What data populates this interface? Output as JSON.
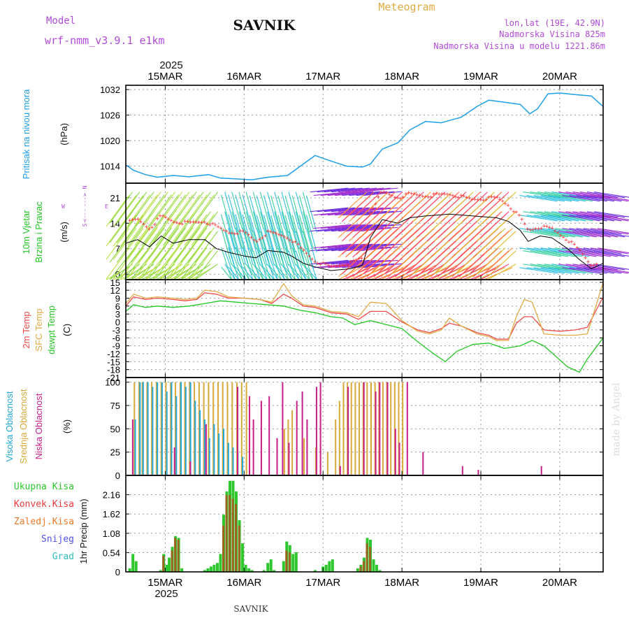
{
  "header": {
    "model_label": "Model",
    "model_name": "wrf-nmm_v3.9.1  e1km",
    "station": "SAVNIK",
    "product": "Meteogram",
    "lonlat": "lon,lat (19E, 42.9N)",
    "elevation": "Nadmorska Visina 825m",
    "model_elevation": "Nadmorska Visina u modelu 1221.86m"
  },
  "footer": {
    "station": "SAVNIK",
    "credit": "made by Angel"
  },
  "colors": {
    "pressure": "#1e9fe8",
    "temp2m": "#ef4a4a",
    "sfc": "#e0aa44",
    "dewpt": "#22c822",
    "high": "#22a8d8",
    "mid": "#d8a838",
    "low": "#c81e8a",
    "total_precip": "#2ec82e",
    "conv_precip": "#c83a1a",
    "frozen": "#f07a2a",
    "snow": "#5050e8",
    "graupel": "#30c0c0",
    "speed_line": "#000000",
    "gust_marks": "#ff3030",
    "compass": "#b04ad8"
  },
  "chart_data": [
    {
      "id": "pressure",
      "type": "line",
      "ylabel_main": "Pritisak na nivou mora",
      "ylabel_unit": "(hPa)",
      "x_unit": "days",
      "x_day_labels": [
        "15MAR",
        "16MAR",
        "17MAR",
        "18MAR",
        "19MAR",
        "20MAR"
      ],
      "x_year": "2025",
      "xlim_days": [
        14.5,
        20.55
      ],
      "ylim": [
        1010,
        1033
      ],
      "yticks": [
        1014,
        1020,
        1026,
        1032
      ],
      "grid": true,
      "series": [
        {
          "x": [
            14.5,
            14.6,
            14.75,
            14.9,
            15.1,
            15.3,
            15.55,
            15.7,
            15.9,
            16.1,
            16.3,
            16.55,
            16.75,
            16.9,
            17.1,
            17.3,
            17.5,
            17.6,
            17.75,
            17.95,
            18.1,
            18.3,
            18.5,
            18.75,
            18.95,
            19.1,
            19.3,
            19.5,
            19.62,
            19.72,
            19.85,
            20.0,
            20.2,
            20.4,
            20.55
          ],
          "y": [
            1014.3,
            1013.0,
            1012.0,
            1011.4,
            1011.8,
            1011.5,
            1012.0,
            1011.2,
            1011.0,
            1010.8,
            1011.4,
            1011.8,
            1014.5,
            1016.5,
            1015.2,
            1014.0,
            1013.8,
            1014.5,
            1018.0,
            1019.5,
            1022.5,
            1024.5,
            1024.2,
            1025.5,
            1028.0,
            1029.5,
            1029.0,
            1028.5,
            1026.3,
            1027.5,
            1031.0,
            1031.2,
            1030.8,
            1030.5,
            1028.0
          ]
        }
      ]
    },
    {
      "id": "wind",
      "type": "line",
      "ylabel_main": "10m Vjetar",
      "ylabel_sub": "Brzina i Pravac",
      "ylabel_unit": "(m/s)",
      "compass": {
        "north": "N",
        "south": "S",
        "east": "E",
        "west": "W",
        "north_arrow": "--->",
        "south_arrow": "<---"
      },
      "ylim": [
        -1.5,
        25
      ],
      "yticks": [
        0,
        7,
        14,
        21
      ],
      "grid": true,
      "series": [
        {
          "name": "speed",
          "x": [
            14.5,
            14.65,
            14.8,
            14.95,
            15.1,
            15.3,
            15.5,
            15.65,
            15.8,
            16.0,
            16.15,
            16.3,
            16.5,
            16.6,
            16.75,
            16.9,
            17.1,
            17.35,
            17.5,
            17.6,
            17.75,
            17.95,
            18.1,
            18.3,
            18.6,
            18.9,
            19.2,
            19.35,
            19.5,
            19.6,
            19.75,
            19.9,
            20.1,
            20.25,
            20.4,
            20.55
          ],
          "y": [
            8.5,
            9.5,
            7.5,
            10.5,
            8.5,
            9.5,
            9.5,
            7.0,
            6.0,
            5.0,
            4.5,
            6.5,
            6.0,
            5.0,
            3.0,
            2.0,
            1.0,
            1.5,
            2.5,
            10.0,
            15.0,
            14.0,
            15.5,
            16.0,
            16.5,
            16.0,
            15.5,
            14.5,
            12.0,
            9.0,
            10.5,
            10.0,
            7.0,
            4.0,
            1.5,
            3.0
          ]
        },
        {
          "name": "gust",
          "x": [
            14.5,
            14.65,
            14.8,
            14.95,
            15.1,
            15.3,
            15.5,
            15.65,
            15.8,
            16.0,
            16.15,
            16.3,
            16.5,
            16.6,
            16.75,
            16.9,
            17.1,
            17.35,
            17.5,
            17.6,
            17.75,
            17.95,
            18.1,
            18.3,
            18.6,
            18.9,
            19.2,
            19.35,
            19.5,
            19.6,
            19.75,
            19.9,
            20.1,
            20.25,
            20.4,
            20.55
          ],
          "y": [
            13.5,
            14.5,
            12.0,
            15.5,
            14.0,
            13.5,
            14.0,
            12.5,
            11.0,
            11.0,
            8.5,
            11.0,
            10.0,
            9.0,
            6.0,
            3.0,
            1.5,
            2.5,
            4.0,
            17.0,
            22.0,
            20.5,
            21.5,
            21.0,
            21.5,
            20.0,
            20.5,
            18.5,
            15.0,
            11.5,
            12.5,
            12.0,
            9.0,
            6.0,
            2.0,
            3.5
          ]
        }
      ]
    },
    {
      "id": "temperature",
      "type": "line",
      "ylabel_lines": [
        "2m Temp",
        "SFC Temp",
        "dewpt Temp"
      ],
      "ylabel_unit": "(C)",
      "ylim": [
        -21,
        16
      ],
      "yticks": [
        15,
        12,
        9,
        6,
        3,
        0,
        -3,
        -6,
        -9,
        -12,
        -15,
        -18,
        -21
      ],
      "grid": true,
      "series": [
        {
          "name": "2m Temp",
          "x": [
            14.5,
            14.6,
            14.75,
            14.9,
            15.1,
            15.25,
            15.4,
            15.5,
            15.65,
            15.8,
            16.0,
            16.2,
            16.35,
            16.5,
            16.6,
            16.75,
            16.9,
            17.1,
            17.3,
            17.45,
            17.6,
            17.8,
            18.0,
            18.2,
            18.35,
            18.5,
            18.6,
            18.75,
            18.95,
            19.1,
            19.2,
            19.35,
            19.45,
            19.55,
            19.65,
            19.8,
            20.0,
            20.2,
            20.35,
            20.55
          ],
          "y": [
            6.0,
            9.5,
            8.5,
            9.0,
            8.5,
            8.0,
            8.5,
            11.0,
            10.5,
            9.0,
            9.0,
            8.5,
            7.0,
            10.5,
            9.0,
            6.0,
            5.5,
            3.5,
            3.0,
            1.0,
            4.0,
            4.0,
            0.0,
            -3.0,
            -4.0,
            -2.5,
            -0.5,
            -1.5,
            -4.0,
            -5.0,
            -6.5,
            -6.5,
            -0.5,
            2.0,
            2.0,
            -3.0,
            -3.5,
            -3.0,
            -2.0,
            9.5
          ]
        },
        {
          "name": "SFC Temp",
          "x": [
            14.5,
            14.6,
            14.75,
            14.9,
            15.1,
            15.25,
            15.4,
            15.5,
            15.65,
            15.8,
            16.0,
            16.2,
            16.35,
            16.5,
            16.6,
            16.75,
            16.9,
            17.1,
            17.3,
            17.45,
            17.6,
            17.8,
            18.0,
            18.2,
            18.35,
            18.5,
            18.6,
            18.75,
            18.95,
            19.1,
            19.2,
            19.35,
            19.45,
            19.55,
            19.65,
            19.8,
            20.0,
            20.2,
            20.35,
            20.55
          ],
          "y": [
            7.0,
            10.5,
            9.0,
            9.5,
            9.0,
            8.5,
            9.0,
            12.0,
            11.5,
            9.5,
            9.0,
            8.5,
            7.5,
            14.5,
            10.0,
            6.5,
            6.0,
            4.0,
            3.5,
            2.0,
            7.5,
            7.0,
            0.5,
            -3.5,
            -4.5,
            -3.0,
            1.5,
            -1.5,
            -4.5,
            -5.5,
            -7.0,
            -7.0,
            2.0,
            8.5,
            7.5,
            -4.5,
            -5.0,
            -5.0,
            -4.5,
            15.0
          ]
        },
        {
          "name": "dewpt Temp",
          "x": [
            14.5,
            14.6,
            14.75,
            14.9,
            15.1,
            15.3,
            15.5,
            15.7,
            15.9,
            16.1,
            16.3,
            16.5,
            16.7,
            16.9,
            17.1,
            17.25,
            17.4,
            17.6,
            17.8,
            18.0,
            18.2,
            18.4,
            18.55,
            18.7,
            18.9,
            19.1,
            19.3,
            19.5,
            19.65,
            19.8,
            19.95,
            20.1,
            20.25,
            20.35,
            20.55
          ],
          "y": [
            4.0,
            6.5,
            5.5,
            6.0,
            5.5,
            6.0,
            7.0,
            8.0,
            7.5,
            7.0,
            6.5,
            6.0,
            4.5,
            3.5,
            2.0,
            1.5,
            -1.0,
            0.5,
            -1.0,
            -2.5,
            -7.5,
            -12.0,
            -15.0,
            -11.0,
            -8.5,
            -8.0,
            -10.0,
            -9.0,
            -7.0,
            -9.0,
            -13.0,
            -17.0,
            -19.0,
            -14.0,
            -6.0
          ]
        }
      ]
    },
    {
      "id": "clouds",
      "type": "bar",
      "ylabel_lines": [
        "Visoka Oblacnost",
        "Srednja Oblacnost",
        "Niska Oblacnost"
      ],
      "ylabel_unit": "(%)",
      "ylim": [
        0,
        105
      ],
      "yticks": [
        0,
        25,
        50,
        75,
        100
      ],
      "grid": true,
      "series": [
        {
          "name": "Visoka Oblacnost",
          "x": [
            14.62,
            14.68,
            14.72,
            14.78,
            14.84,
            14.9,
            14.96,
            15.02,
            15.08,
            15.14,
            15.2,
            15.26,
            15.32,
            15.38,
            15.44,
            15.5,
            15.56,
            15.62,
            15.68,
            15.74,
            15.8,
            15.86,
            15.92,
            15.98
          ],
          "y": [
            60,
            100,
            100,
            100,
            95,
            100,
            100,
            90,
            100,
            85,
            100,
            95,
            100,
            80,
            70,
            60,
            40,
            55,
            45,
            50,
            35,
            30,
            25,
            20
          ]
        },
        {
          "name": "Srednja Oblacnost",
          "x": [
            14.6,
            14.66,
            14.7,
            14.76,
            14.82,
            14.88,
            14.94,
            15.0,
            15.06,
            15.12,
            15.18,
            15.24,
            15.3,
            15.36,
            15.42,
            15.48,
            15.54,
            15.6,
            15.66,
            15.72,
            15.78,
            15.84,
            15.9,
            15.96,
            16.02,
            16.5,
            16.55,
            16.6,
            16.75,
            16.9,
            17.05,
            17.15,
            17.2,
            17.25,
            17.3,
            17.35,
            17.4,
            17.45,
            17.5,
            17.55,
            17.6,
            17.65,
            17.7,
            17.75,
            17.8,
            17.85,
            17.9,
            17.95,
            18.0
          ],
          "y": [
            100,
            100,
            100,
            100,
            100,
            100,
            100,
            100,
            100,
            100,
            100,
            100,
            100,
            100,
            100,
            100,
            100,
            100,
            100,
            100,
            100,
            100,
            100,
            100,
            100,
            50,
            60,
            70,
            40,
            30,
            25,
            60,
            80,
            100,
            100,
            100,
            100,
            100,
            100,
            100,
            100,
            100,
            100,
            100,
            100,
            100,
            100,
            100,
            100
          ]
        },
        {
          "name": "Niska Oblacnost",
          "x": [
            14.57,
            15.1,
            15.3,
            15.5,
            15.9,
            16.05,
            16.1,
            16.2,
            16.3,
            16.4,
            16.47,
            16.55,
            16.65,
            16.72,
            16.78,
            16.9,
            16.95,
            17.2,
            17.3,
            17.5,
            17.65,
            17.7,
            17.8,
            17.9,
            17.95,
            18.05,
            18.25,
            18.75,
            18.95,
            19.75
          ],
          "y": [
            60,
            30,
            15,
            55,
            95,
            85,
            60,
            80,
            85,
            40,
            100,
            35,
            80,
            90,
            60,
            95,
            100,
            10,
            95,
            100,
            90,
            100,
            100,
            50,
            35,
            100,
            25,
            10,
            6,
            10
          ]
        }
      ]
    },
    {
      "id": "precip",
      "type": "bar",
      "ylabel_unit": "1hr Precip (mm)",
      "legend": [
        "Ukupna Kisa",
        "Konvek.Kisa",
        "Zaledj.Kisa",
        "Snijeg",
        "Grad"
      ],
      "ylim": [
        0,
        2.7
      ],
      "yticks": [
        0,
        0.54,
        1.08,
        1.62,
        2.16
      ],
      "grid": true,
      "series": [
        {
          "name": "Ukupna Kisa",
          "x": [
            14.55,
            14.59,
            14.63,
            14.94,
            14.98,
            15.02,
            15.05,
            15.09,
            15.13,
            15.17,
            15.21,
            15.5,
            15.54,
            15.58,
            15.62,
            15.66,
            15.7,
            15.74,
            15.78,
            15.82,
            15.86,
            15.9,
            15.94,
            15.98,
            16.02,
            16.06,
            16.1,
            16.25,
            16.3,
            16.34,
            16.38,
            16.5,
            16.54,
            16.58,
            16.62,
            16.66,
            16.9,
            17.0,
            17.04,
            17.08,
            17.12,
            17.44,
            17.48,
            17.52,
            17.56,
            17.6,
            17.64,
            17.68,
            17.72
          ],
          "y": [
            0.1,
            0.5,
            0.3,
            0.05,
            0.5,
            0.2,
            0.4,
            0.7,
            1.0,
            0.95,
            0.1,
            0.05,
            0.1,
            0.15,
            0.2,
            0.25,
            0.5,
            1.6,
            2.25,
            2.55,
            2.55,
            2.25,
            1.45,
            0.8,
            0.2,
            0.1,
            0.05,
            0.05,
            0.25,
            0.35,
            0.05,
            0.3,
            0.85,
            0.75,
            0.5,
            0.55,
            0.05,
            0.15,
            0.2,
            0.3,
            0.35,
            0.1,
            0.2,
            0.4,
            0.95,
            0.9,
            0.35,
            0.2,
            0.05
          ]
        },
        {
          "name": "Konvek.Kisa",
          "x": [
            14.98,
            15.09,
            15.13,
            15.17,
            15.74,
            15.78,
            15.82,
            15.86,
            15.9,
            15.94,
            16.54,
            16.58,
            17.48,
            17.52,
            17.56,
            17.6
          ],
          "y": [
            0.45,
            0.6,
            0.95,
            0.9,
            1.3,
            2.15,
            2.15,
            2.05,
            1.9,
            1.3,
            0.6,
            0.55,
            0.15,
            0.3,
            0.8,
            0.7
          ]
        }
      ]
    }
  ]
}
